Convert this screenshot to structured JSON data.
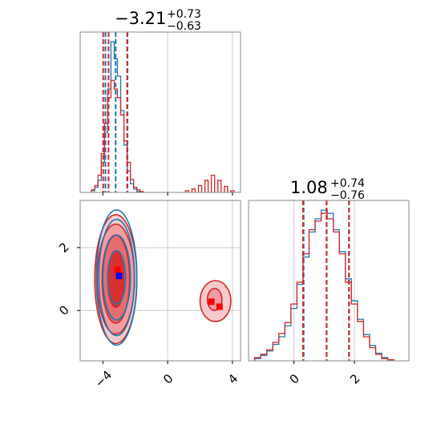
{
  "chart_data": [
    {
      "type": "histogram",
      "panel": "top-left",
      "title_value": "−3.21",
      "title_sup": "+0.73",
      "title_sub": "−0.63",
      "xlim": [
        -5.4,
        4.5
      ],
      "series": [
        {
          "name": "",
          "color": "#1f77b4",
          "bin_centers": [
            -4.6,
            -4.4,
            -4.2,
            -4.0,
            -3.8,
            -3.6,
            -3.4,
            -3.2,
            -3.0,
            -2.8,
            -2.6,
            -2.4,
            -2.2,
            -2.0,
            -1.8
          ],
          "counts": [
            2,
            6,
            14,
            35,
            70,
            120,
            175,
            155,
            135,
            95,
            55,
            25,
            10,
            4,
            1
          ],
          "quantile_lines": [
            -3.84,
            -3.21,
            -2.48
          ]
        },
        {
          "name": "",
          "color": "#d62728",
          "bin_centers": [
            -4.6,
            -4.4,
            -4.2,
            -4.0,
            -3.8,
            -3.6,
            -3.4,
            -3.2,
            -3.0,
            -2.8,
            -2.6,
            -2.4,
            -2.2,
            -2.0,
            -1.8,
            -1.6,
            1.2,
            1.6,
            2.0,
            2.4,
            2.8,
            3.2,
            3.6,
            4.0
          ],
          "counts": [
            3,
            8,
            20,
            45,
            80,
            110,
            130,
            120,
            110,
            90,
            60,
            35,
            15,
            6,
            3,
            1,
            2,
            4,
            8,
            14,
            20,
            14,
            7,
            2
          ],
          "quantile_lines": [
            -3.98,
            -3.65,
            -2.5
          ]
        }
      ],
      "xticks": [
        -4,
        0,
        4
      ],
      "gridlines_x": [
        0,
        4
      ]
    },
    {
      "type": "contour",
      "panel": "bottom-left",
      "xlim": [
        -5.4,
        4.5
      ],
      "ylim": [
        -1.6,
        3.5
      ],
      "xticks": [
        -4,
        0,
        4
      ],
      "yticks": [
        0,
        2
      ],
      "grid": true,
      "series": [
        {
          "name": "",
          "color": "#1f77b4",
          "marker": [
            -3.0,
            1.1
          ],
          "marker_color": "#0000ff",
          "levels": [
            {
              "cx": -3.15,
              "cy": 1.05,
              "rx": 0.55,
              "ry": 0.85
            },
            {
              "cx": -3.15,
              "cy": 1.05,
              "rx": 0.85,
              "ry": 1.35
            },
            {
              "cx": -3.15,
              "cy": 1.05,
              "rx": 1.1,
              "ry": 1.85
            },
            {
              "cx": -3.15,
              "cy": 1.05,
              "rx": 1.25,
              "ry": 2.15
            }
          ]
        },
        {
          "name": "",
          "color": "#d62728",
          "marker": [
            -3.1,
            1.3
          ],
          "marker_color": "#ff0000",
          "levels": [
            {
              "cx": -3.2,
              "cy": 1.0,
              "rx": 0.5,
              "ry": 0.9
            },
            {
              "cx": -3.2,
              "cy": 1.0,
              "rx": 0.85,
              "ry": 1.4
            },
            {
              "cx": -3.2,
              "cy": 1.0,
              "rx": 1.15,
              "ry": 1.75
            },
            {
              "cx": -3.2,
              "cy": 1.0,
              "rx": 1.3,
              "ry": 2.05
            }
          ],
          "secondary_levels": [
            {
              "cx": 2.9,
              "cy": 0.35,
              "rx": 0.45,
              "ry": 0.35
            },
            {
              "cx": 2.95,
              "cy": 0.3,
              "rx": 0.95,
              "ry": 0.65
            }
          ],
          "secondary_markers": [
            [
              2.7,
              0.28
            ],
            [
              3.2,
              0.12
            ]
          ]
        }
      ]
    },
    {
      "type": "histogram",
      "panel": "bottom-right",
      "title_value": "1.08",
      "title_sup": "+0.74",
      "title_sub": "−0.76",
      "xlim": [
        -1.5,
        3.8
      ],
      "xticks": [
        0,
        2
      ],
      "gridlines_x": [
        0,
        2
      ],
      "series": [
        {
          "name": "",
          "color": "#1f77b4",
          "bin_centers": [
            -1.2,
            -1.0,
            -0.8,
            -0.6,
            -0.4,
            -0.2,
            0.0,
            0.2,
            0.4,
            0.6,
            0.8,
            1.0,
            1.2,
            1.4,
            1.6,
            1.8,
            2.0,
            2.2,
            2.4,
            2.6,
            2.8,
            3.0,
            3.2
          ],
          "counts": [
            2,
            5,
            9,
            15,
            22,
            32,
            48,
            70,
            95,
            118,
            130,
            138,
            135,
            120,
            100,
            75,
            55,
            38,
            24,
            14,
            7,
            3,
            1
          ],
          "quantile_lines": [
            0.32,
            1.08,
            1.82
          ]
        },
        {
          "name": "",
          "color": "#d62728",
          "bin_centers": [
            -1.2,
            -1.0,
            -0.8,
            -0.6,
            -0.4,
            -0.2,
            0.0,
            0.2,
            0.4,
            0.6,
            0.8,
            1.0,
            1.2,
            1.4,
            1.6,
            1.8,
            2.0,
            2.2,
            2.4,
            2.6,
            2.8,
            3.0,
            3.2
          ],
          "counts": [
            3,
            6,
            10,
            17,
            25,
            35,
            52,
            72,
            98,
            120,
            128,
            135,
            130,
            118,
            98,
            72,
            52,
            36,
            22,
            12,
            6,
            2,
            1
          ],
          "quantile_lines": [
            0.3,
            1.08,
            1.82
          ]
        }
      ]
    }
  ]
}
